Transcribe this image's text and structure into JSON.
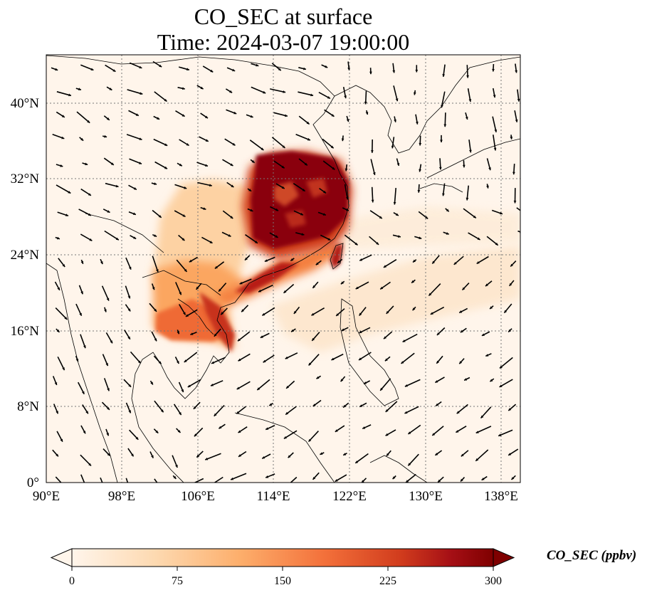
{
  "title": {
    "line1": "CO_SEC at surface",
    "line2": "Time: 2024-03-07 19:00:00"
  },
  "map": {
    "extent": {
      "lon": [
        90,
        140
      ],
      "lat": [
        0,
        45
      ]
    },
    "lon_ticks": [
      "90°E",
      "98°E",
      "106°E",
      "114°E",
      "122°E",
      "130°E",
      "138°E"
    ],
    "lon_tick_values": [
      90,
      98,
      106,
      114,
      122,
      130,
      138
    ],
    "lat_ticks": [
      "0°",
      "8°N",
      "16°N",
      "24°N",
      "32°N",
      "40°N"
    ],
    "lat_tick_values": [
      0,
      8,
      16,
      24,
      32,
      40
    ],
    "gridlines": "dotted",
    "field": "CO_SEC concentration shading with wind vectors"
  },
  "colorbar": {
    "label": "CO_SEC (ppbv)",
    "ticks": [
      "0",
      "75",
      "150",
      "225",
      "300"
    ],
    "tick_values": [
      0,
      75,
      150,
      225,
      300
    ],
    "range": [
      0,
      300
    ],
    "extend": "both",
    "colormap": [
      "#fff5eb",
      "#fdd9b0",
      "#fdae6b",
      "#f3703a",
      "#d13c1d",
      "#a50f15",
      "#7f0000"
    ]
  }
}
